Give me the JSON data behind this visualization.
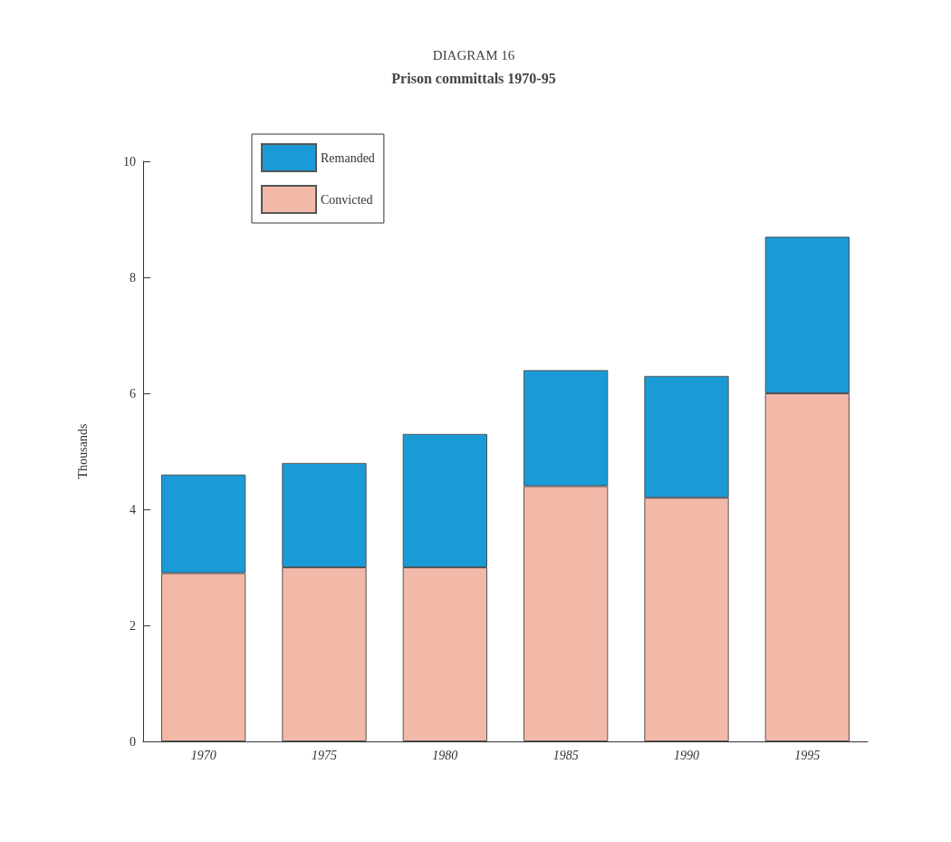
{
  "chart_data": {
    "type": "bar",
    "title": "DIAGRAM 16",
    "subtitle": "Prison committals 1970-95",
    "ylabel": "Thousands",
    "categories": [
      "1970",
      "1975",
      "1980",
      "1985",
      "1990",
      "1995"
    ],
    "series": [
      {
        "name": "Convicted",
        "color": "#f2b8a8",
        "values": [
          2.9,
          3.0,
          3.0,
          4.4,
          4.2,
          6.0
        ]
      },
      {
        "name": "Remanded",
        "color": "#1a9ad6",
        "values": [
          1.7,
          1.8,
          2.3,
          2.0,
          2.1,
          2.7
        ]
      }
    ],
    "stacked": true,
    "ylim": [
      0,
      10
    ],
    "yticks": [
      0,
      2,
      4,
      6,
      8,
      10
    ],
    "grid": false,
    "legend": "top left"
  }
}
